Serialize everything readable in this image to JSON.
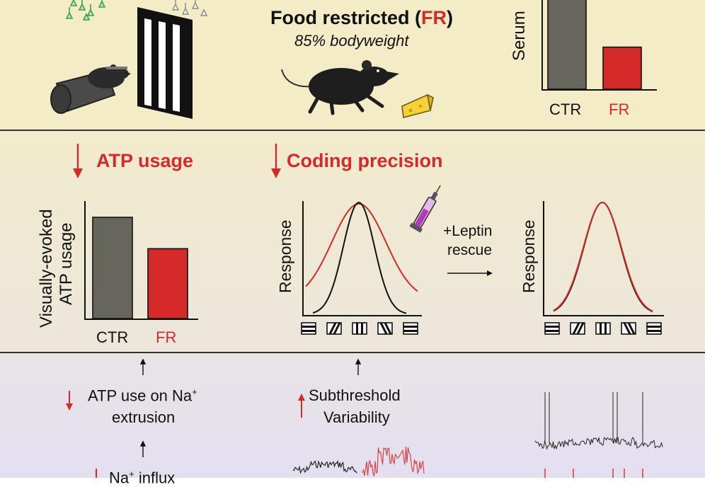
{
  "top": {
    "title_prefix": "Food restricted (",
    "title_fr": "FR",
    "title_suffix": ")",
    "subtitle": "85% bodyweight",
    "serum_label": "Serum",
    "serum_chart": {
      "type": "bar",
      "categories": [
        "CTR",
        "FR"
      ],
      "values": [
        1.0,
        0.45
      ],
      "colors": [
        "#66665c",
        "#d42a2a"
      ]
    }
  },
  "middle": {
    "atp_heading": "ATP usage",
    "coding_heading": "Coding precision",
    "atp_ylabel_line1": "Visually-evoked",
    "atp_ylabel_line2": "ATP usage",
    "atp_chart": {
      "type": "bar",
      "categories": [
        "CTR",
        "FR"
      ],
      "values": [
        1.0,
        0.69
      ],
      "colors": [
        "#66665c",
        "#d42a2a"
      ]
    },
    "response_label": "Response",
    "leptin_line1": "+Leptin",
    "leptin_line2": "rescue"
  },
  "bottom": {
    "na_line1": "ATP use on Na",
    "na_sup": "+",
    "na_line2": "extrusion",
    "sub_line1": "Subthreshold",
    "sub_line2": "Variability",
    "influx_prefix": "Na",
    "influx_sup": "+",
    "influx_suffix": " influx"
  },
  "colors": {
    "accent_red": "#d42a2a",
    "bar_gray": "#66665c",
    "divider": "#333333"
  }
}
